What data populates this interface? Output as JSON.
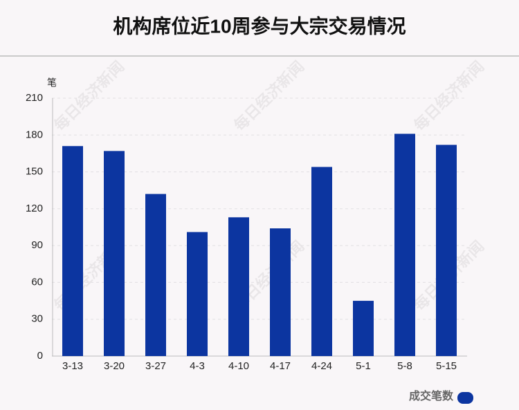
{
  "chart_data": {
    "type": "bar",
    "title": "机构席位近10周参与大宗交易情况",
    "y_unit": "笔",
    "watermark": "每日经济新闻",
    "categories": [
      "3-13",
      "3-20",
      "3-27",
      "4-3",
      "4-10",
      "4-17",
      "4-24",
      "5-1",
      "5-8",
      "5-15"
    ],
    "series": [
      {
        "name": "成交笔数",
        "color": "#0c35a0",
        "values": [
          171,
          167,
          132,
          101,
          113,
          104,
          154,
          45,
          181,
          172
        ]
      }
    ],
    "ylim": [
      0,
      210
    ],
    "yticks": [
      0,
      30,
      60,
      90,
      120,
      150,
      180,
      210
    ],
    "grid": true,
    "legend": "bottom-right"
  }
}
